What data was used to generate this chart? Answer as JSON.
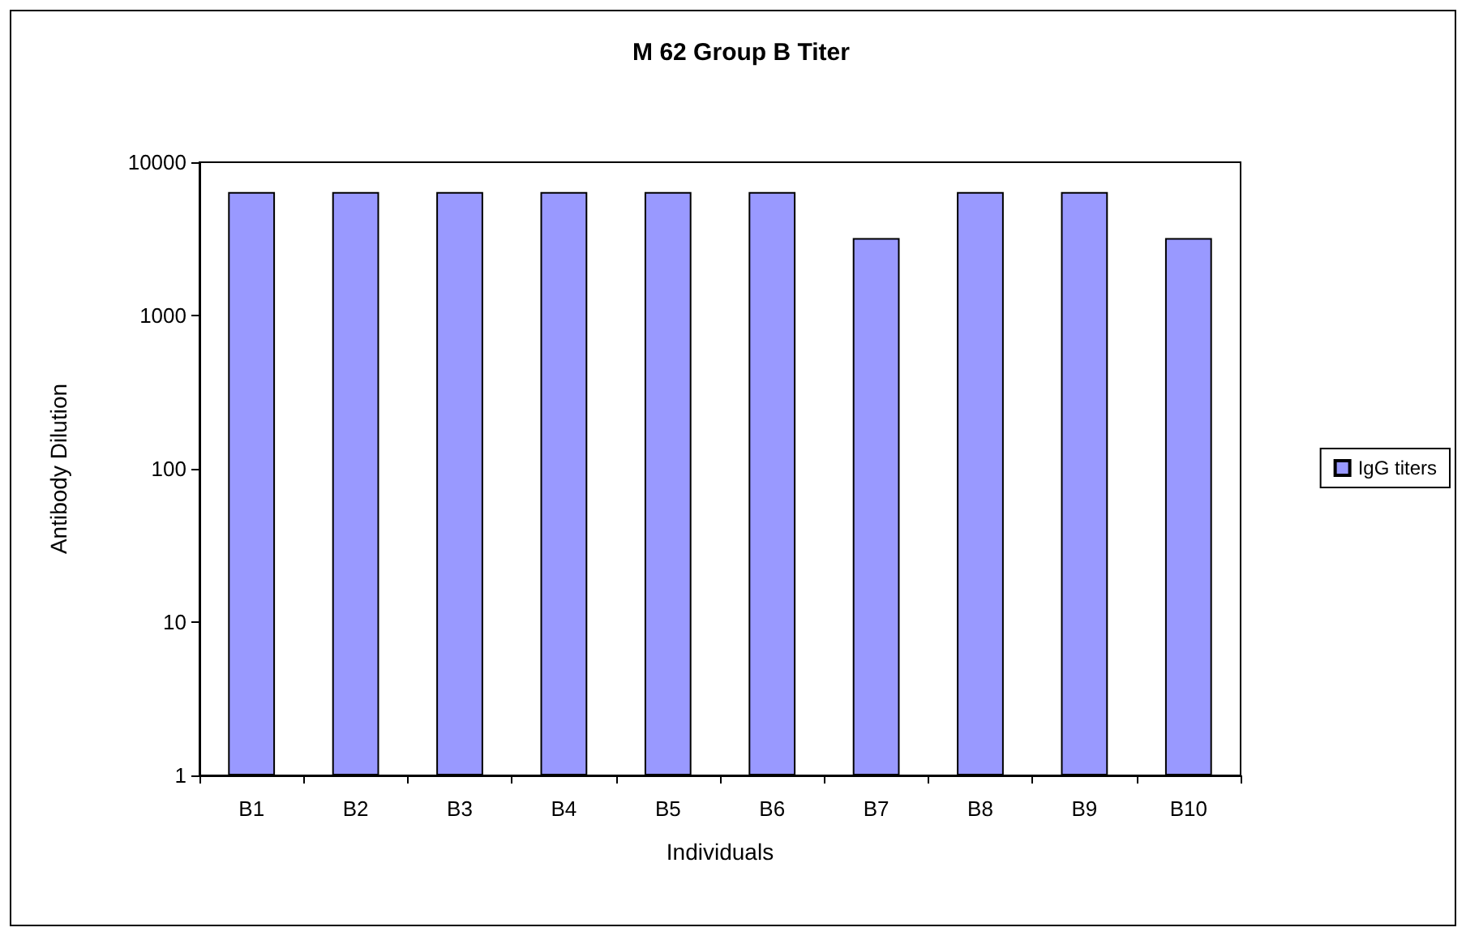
{
  "chart_data": {
    "type": "bar",
    "title": "M 62 Group B Titer",
    "xlabel": "Individuals",
    "ylabel": "Antibody Dilution",
    "categories": [
      "B1",
      "B2",
      "B3",
      "B4",
      "B5",
      "B6",
      "B7",
      "B8",
      "B9",
      "B10"
    ],
    "series": [
      {
        "name": "IgG titers",
        "color": "#9999ff",
        "values": [
          6400,
          6400,
          6400,
          6400,
          6400,
          6400,
          3200,
          6400,
          6400,
          3200
        ]
      }
    ],
    "log": true,
    "ylim": [
      1,
      10000
    ],
    "yticks": [
      1,
      10,
      100,
      1000,
      10000
    ],
    "grid": false,
    "legend": "right"
  }
}
